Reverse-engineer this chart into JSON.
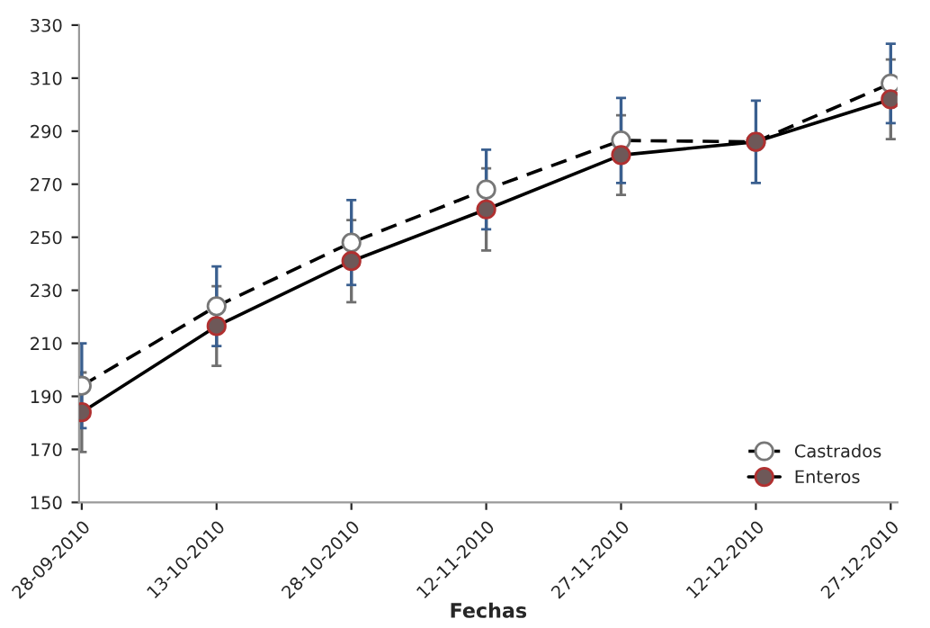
{
  "chart_data": {
    "type": "line",
    "xlabel": "Fechas",
    "categories": [
      "28-09-2010",
      "13-10-2010",
      "28-10-2010",
      "12-11-2010",
      "27-11-2010",
      "12-12-2010",
      "27-12-2010"
    ],
    "series": [
      {
        "name": "Castrados",
        "color": "#ffffff",
        "line_style": "dashed",
        "values": [
          194,
          224,
          248,
          268,
          286.5,
          286,
          308
        ],
        "errors": [
          16,
          15,
          16,
          15,
          16,
          15.5,
          15
        ]
      },
      {
        "name": "Enteros",
        "color": "#6e5858",
        "line_style": "solid",
        "values": [
          184,
          216.5,
          241,
          260.5,
          281,
          286,
          302
        ],
        "errors": [
          15,
          15,
          15.5,
          15.5,
          15,
          null,
          15
        ]
      }
    ],
    "ylim": [
      150,
      330
    ],
    "yticks": [
      150,
      170,
      190,
      210,
      230,
      250,
      270,
      290,
      310,
      330
    ],
    "marker": "circle",
    "legend": "bottom right",
    "grid": false
  }
}
